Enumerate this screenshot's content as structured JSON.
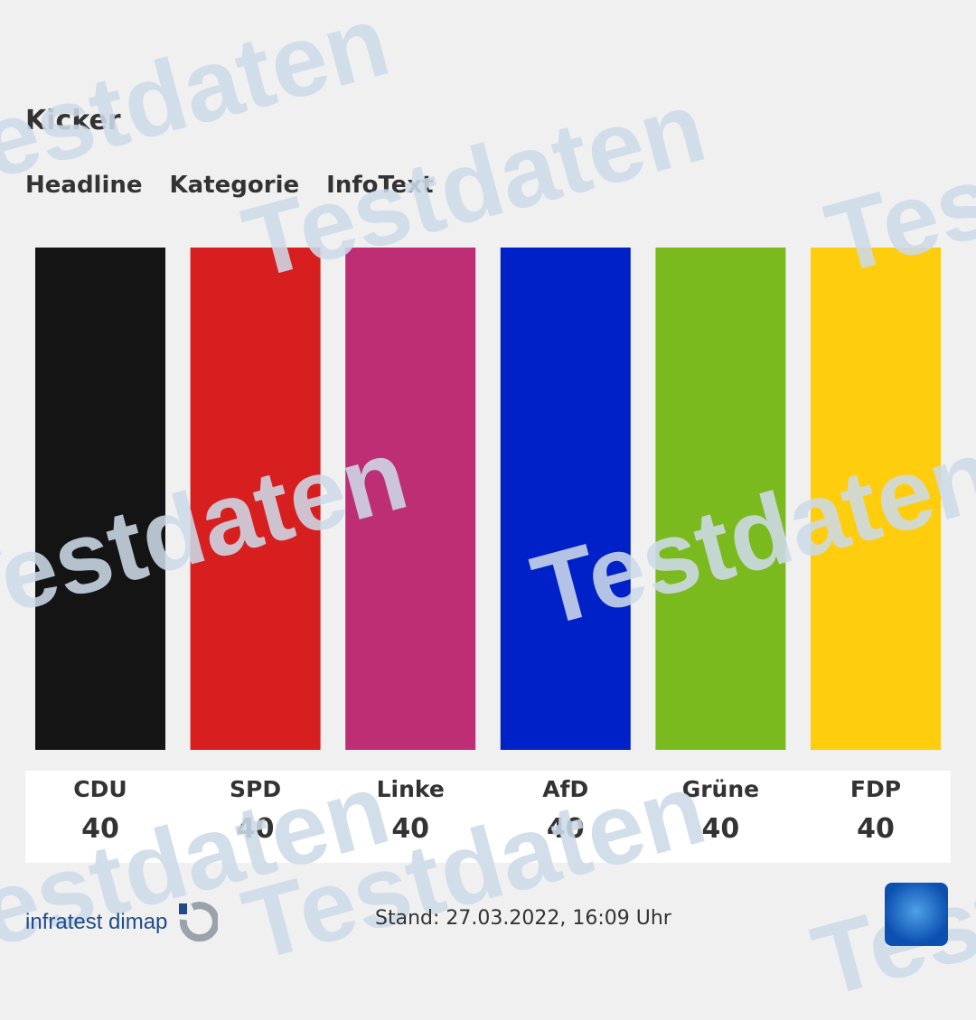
{
  "header": {
    "kicker": "Kicker",
    "headline": "Headline",
    "category": "Kategorie",
    "info": "InfoText"
  },
  "chart_data": {
    "type": "bar",
    "categories": [
      "CDU",
      "SPD",
      "Linke",
      "AfD",
      "Grüne",
      "FDP"
    ],
    "values": [
      40,
      40,
      40,
      40,
      40,
      40
    ],
    "value_labels": [
      "40",
      "40",
      "40",
      "40",
      "40",
      "40"
    ],
    "colors": [
      "#141414",
      "#d71f1f",
      "#bd2e74",
      "#0021c8",
      "#7aba1f",
      "#fecd0d"
    ],
    "ylim": [
      0,
      40
    ],
    "grid": false
  },
  "footer": {
    "source": "infratest dimap",
    "stand": "Stand: 27.03.2022, 16:09 Uhr",
    "watermark": "Testdaten"
  }
}
